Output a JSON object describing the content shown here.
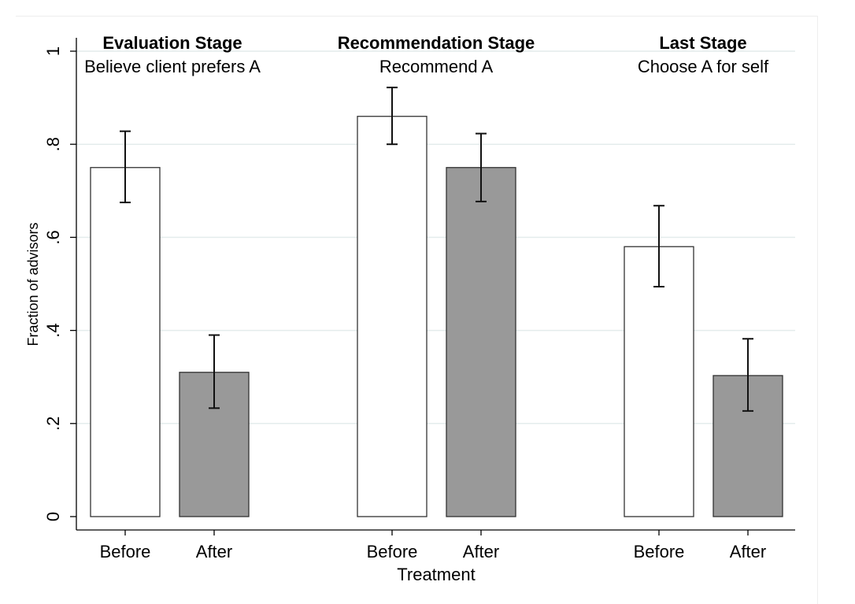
{
  "chart_data": {
    "type": "bar",
    "ylabel": "Fraction of advisors",
    "xlabel": "Treatment",
    "ylim": [
      0,
      1
    ],
    "yticks": [
      0,
      0.2,
      0.4,
      0.6,
      0.8,
      1
    ],
    "ytick_labels": [
      "0",
      ".2",
      ".4",
      ".6",
      ".8",
      "1"
    ],
    "grid": true,
    "categories": [
      "Before",
      "After"
    ],
    "series_colors": {
      "Before": "#ffffff",
      "After": "#999999"
    },
    "panels": [
      {
        "title": "Evaluation Stage",
        "subtitle": "Believe client prefers A",
        "bars": [
          {
            "label": "Before",
            "value": 0.75,
            "ci_low": 0.675,
            "ci_high": 0.828
          },
          {
            "label": "After",
            "value": 0.31,
            "ci_low": 0.233,
            "ci_high": 0.39
          }
        ]
      },
      {
        "title": "Recommendation Stage",
        "subtitle": "Recommend A",
        "bars": [
          {
            "label": "Before",
            "value": 0.86,
            "ci_low": 0.8,
            "ci_high": 0.922
          },
          {
            "label": "After",
            "value": 0.75,
            "ci_low": 0.677,
            "ci_high": 0.823
          }
        ]
      },
      {
        "title": "Last Stage",
        "subtitle": "Choose A for self",
        "bars": [
          {
            "label": "Before",
            "value": 0.58,
            "ci_low": 0.494,
            "ci_high": 0.668
          },
          {
            "label": "After",
            "value": 0.303,
            "ci_low": 0.227,
            "ci_high": 0.382
          }
        ]
      }
    ]
  }
}
